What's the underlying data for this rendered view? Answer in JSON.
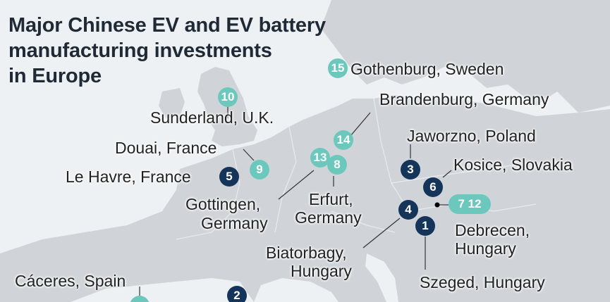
{
  "title": {
    "line1": "Major Chinese EV and EV battery",
    "line2": "manufacturing investments",
    "line3": "in Europe"
  },
  "colors": {
    "chinese_ev_marker": "#6cc8bd",
    "battery_marker": "#15345a"
  },
  "markers": {
    "m1": "1",
    "m2": "2",
    "m3": "3",
    "m4": "4",
    "m5": "5",
    "m6": "6",
    "m7_12": "7 12",
    "m8": "8",
    "m9": "9",
    "m10": "10",
    "m13": "13",
    "m14": "14",
    "m15": "15"
  },
  "locations": {
    "gothenburg": "Gothenburg, Sweden",
    "brandenburg": "Brandenburg, Germany",
    "sunderland": "Sunderland, U.K.",
    "jaworzno": "Jaworzno, Poland",
    "douai": "Douai, France",
    "kosice": "Kosice, Slovakia",
    "le_havre": "Le Havre, France",
    "erfurt_1": "Erfurt,",
    "erfurt_2": "Germany",
    "gottingen_1": "Gottingen,",
    "gottingen_2": "Germany",
    "debrecen_1": "Debrecen,",
    "debrecen_2": "Hungary",
    "biatorbagy_1": "Biatorbagy,",
    "biatorbagy_2": "Hungary",
    "caceres": "Cáceres, Spain",
    "szeged": "Szeged, Hungary"
  }
}
